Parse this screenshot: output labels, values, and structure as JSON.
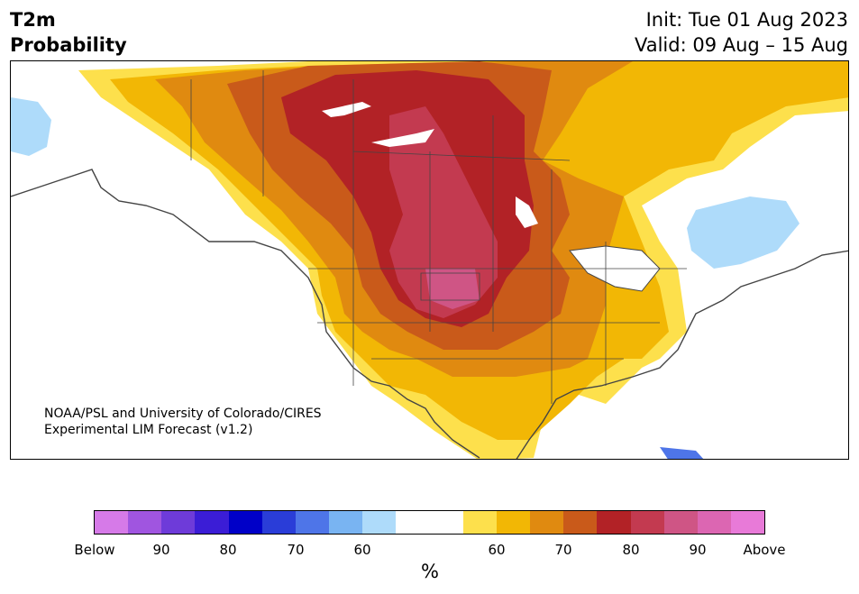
{
  "header": {
    "title_line1": "T2m",
    "title_line2": "Probability",
    "init": "Init: Tue 01 Aug 2023",
    "valid": "Valid: 09 Aug – 15 Aug"
  },
  "map": {
    "credit_line1": "NOAA/PSL and University of Colorado/CIRES",
    "credit_line2": "Experimental LIM Forecast (v1.2)"
  },
  "colorbar": {
    "colors": [
      "#d67ae8",
      "#a055e0",
      "#6e3bd9",
      "#3b1dd6",
      "#0000c8",
      "#2a3dd8",
      "#4e75e8",
      "#79b4f2",
      "#aedbfa",
      "#ffffff",
      "#ffffff",
      "#fde04c",
      "#f2b705",
      "#e08a10",
      "#c95a1a",
      "#b22226",
      "#c33a50",
      "#cf5585",
      "#dc66b2",
      "#e87ad8"
    ],
    "labels": [
      "Below",
      "90",
      "80",
      "70",
      "60",
      "60",
      "70",
      "80",
      "90",
      "Above"
    ],
    "unit": "%"
  }
}
